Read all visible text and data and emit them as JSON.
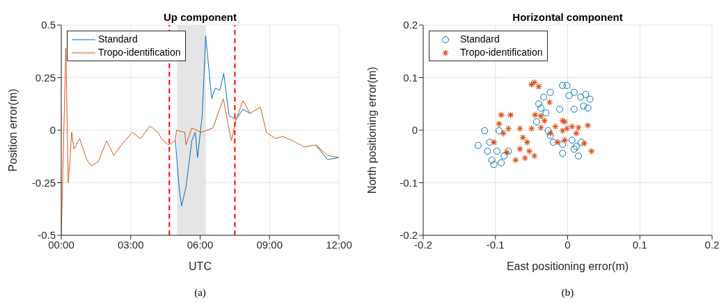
{
  "chart_data": [
    {
      "type": "line",
      "title": "Up component",
      "xlabel": "UTC",
      "ylabel": "Position error(m)",
      "xlim": [
        0,
        12
      ],
      "xticks": [
        {
          "value": 0,
          "label": "00:00"
        },
        {
          "value": 3,
          "label": "03:00"
        },
        {
          "value": 6,
          "label": "06:00"
        },
        {
          "value": 9,
          "label": "09:00"
        },
        {
          "value": 12,
          "label": "12:00"
        }
      ],
      "ylim": [
        -0.5,
        0.5
      ],
      "yticks": [
        -0.5,
        -0.25,
        0,
        0.25,
        0.5
      ],
      "grid": true,
      "legend": "top left",
      "line_style": "solid",
      "marker": "none",
      "series": [
        {
          "name": "Standard",
          "color": "#0072bd",
          "x": [
            4.93,
            5.09,
            5.2,
            5.39,
            5.64,
            5.79,
            5.89,
            6.09,
            6.24,
            6.5,
            6.65,
            6.85,
            7.02,
            7.25,
            7.55,
            7.85,
            8.16,
            8.61,
            8.86,
            9.26,
            9.57,
            10,
            10.5,
            11,
            11.5,
            12
          ],
          "values": [
            -0.05,
            -0.27,
            -0.36,
            -0.27,
            -0.05,
            -0.01,
            -0.13,
            0.07,
            0.45,
            0.15,
            0.2,
            0.19,
            0.27,
            0.07,
            0.05,
            0.1,
            0.08,
            null,
            null,
            null,
            null,
            null,
            null,
            -0.07,
            -0.14,
            -0.13
          ]
        },
        {
          "name": "Tropo-identification",
          "color": "#d95319",
          "x": [
            0,
            0.2,
            0.3,
            0.38,
            0.45,
            0.55,
            0.8,
            1.1,
            1.3,
            1.6,
            1.96,
            2.27,
            2.6,
            3.07,
            3.42,
            3.83,
            4.18,
            4.33,
            4.63,
            4.93,
            4.98,
            5.34,
            5.39,
            5.64,
            6.04,
            6.55,
            7.0,
            7.35,
            7.55,
            7.85,
            8.16,
            8.61,
            8.86,
            9.26,
            9.57,
            10,
            10.5,
            11,
            11.5,
            12
          ],
          "values": [
            -0.5,
            0.39,
            -0.25,
            -0.14,
            -0.01,
            -0.09,
            -0.04,
            -0.14,
            -0.17,
            -0.15,
            -0.05,
            -0.12,
            -0.07,
            -0.01,
            -0.04,
            0.02,
            -0.01,
            -0.04,
            -0.07,
            -0.05,
            0,
            -0.01,
            -0.07,
            0.01,
            -0.01,
            0.01,
            0.15,
            -0.05,
            0.05,
            0.14,
            0.08,
            0.11,
            -0.01,
            -0.04,
            -0.03,
            -0.05,
            -0.08,
            -0.07,
            -0.12,
            -0.13
          ]
        }
      ],
      "ref_lines": [
        {
          "axis": "x",
          "value": 4.67,
          "color": "#ff0000",
          "line_style": "dashed"
        },
        {
          "axis": "x",
          "value": 7.5,
          "color": "#ff0000",
          "line_style": "dashed"
        }
      ],
      "bands": [
        {
          "axis": "x",
          "from": 5,
          "to": 6.25,
          "color": "#e5e5e5"
        }
      ],
      "annotations": [
        "(a)"
      ]
    },
    {
      "type": "scatter",
      "title": "Horizontal component",
      "xlabel": "East positioning error(m)",
      "ylabel": "North positioning error(m)",
      "xlim": [
        -0.2,
        0.2
      ],
      "xticks": [
        -0.2,
        -0.1,
        0,
        0.1,
        0.2
      ],
      "ylim": [
        -0.2,
        0.2
      ],
      "yticks": [
        -0.2,
        -0.1,
        0,
        0.1,
        0.2
      ],
      "grid": true,
      "legend": "top left",
      "series": [
        {
          "name": "Standard",
          "color": "#0072bd",
          "marker": "circle",
          "x": [
            -0.124,
            -0.115,
            -0.108,
            -0.105,
            -0.098,
            -0.092,
            -0.111,
            -0.082,
            -0.095,
            -0.04,
            -0.033,
            -0.024,
            -0.037,
            -0.03,
            -0.011,
            -0.007,
            -0.001,
            0.009,
            0.002,
            0.009,
            0.018,
            0.025,
            0.031,
            0.028,
            0.022,
            -0.043,
            -0.027,
            -0.02,
            -0.024,
            -0.007,
            0.006,
            0.009,
            0.015,
            0.012,
            0.019,
            -0.007,
            -0.088,
            -0.102
          ],
          "values": [
            -0.029,
            -0.001,
            -0.023,
            -0.057,
            -0.04,
            -0.062,
            -0.04,
            -0.04,
            -0.001,
            0.05,
            0.063,
            0.072,
            0.042,
            0.033,
            0.04,
            0.085,
            0.085,
            0.072,
            0.066,
            0.04,
            0.063,
            0.068,
            0.059,
            0.042,
            0.046,
            0.016,
            -0.001,
            -0.023,
            -0.01,
            -0.027,
            -0.019,
            -0.036,
            -0.049,
            -0.031,
            -0.023,
            -0.044,
            -0.049,
            -0.065
          ]
        },
        {
          "name": "Tropo-identification",
          "color": "#d95319",
          "marker": "cross",
          "x": [
            -0.05,
            -0.046,
            -0.04,
            -0.025,
            -0.092,
            -0.079,
            -0.095,
            -0.082,
            -0.066,
            -0.05,
            -0.037,
            -0.089,
            -0.062,
            -0.056,
            -0.066,
            -0.053,
            -0.059,
            -0.072,
            -0.046,
            -0.102,
            -0.084,
            -0.045,
            -0.037,
            -0.032,
            -0.017,
            -0.007,
            -0.001,
            0.006,
            0.012,
            -0.004,
            -0.024,
            0.015,
            0.028,
            -0.014,
            -0.004,
            0.023,
            0.033,
            -0.007
          ],
          "values": [
            0.087,
            0.091,
            0.083,
            0.053,
            0.029,
            0.029,
            0.012,
            0.003,
            0.003,
            0.003,
            0.005,
            -0.006,
            -0.014,
            -0.023,
            -0.036,
            -0.04,
            -0.053,
            -0.057,
            -0.049,
            -0.023,
            -0.042,
            0.029,
            0.027,
            0.018,
            0.007,
            -0.001,
            0.003,
            0.007,
            -0.006,
            0.016,
            -0.006,
            0.005,
            0.009,
            -0.023,
            -0.019,
            -0.025,
            -0.04,
            0.018
          ]
        }
      ],
      "annotations": [
        "(b)"
      ]
    }
  ]
}
